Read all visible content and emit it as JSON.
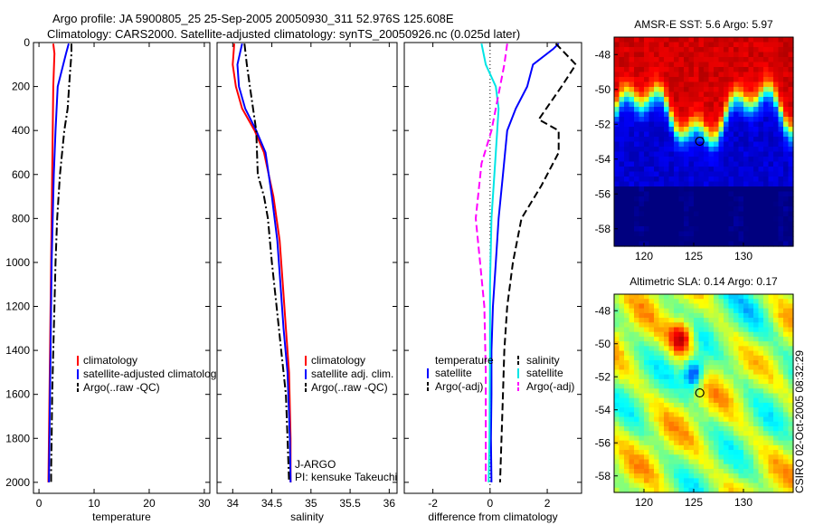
{
  "header": {
    "line1": "Argo profile: JA 5900805_25 25-Sep-2005 20050930_311 52.976S 125.608E",
    "line2": "Climatology: CARS2000. Satellite-adjusted climatology: synTS_20050926.nc (0.025d later)"
  },
  "footer_stamp": "CSIRO 02-Oct-2005 08:32:29",
  "colors": {
    "climatology": "#ff0000",
    "satellite": "#0000ff",
    "argo": "#000000",
    "sal_satellite": "#00e5e5",
    "sal_argo": "#ff00ff"
  },
  "chart_data": [
    {
      "type": "line",
      "xlabel": "temperature",
      "xlim": [
        -1,
        31
      ],
      "ylim": [
        0,
        2050
      ],
      "xticks": [
        0,
        10,
        20,
        30
      ],
      "yticks": [
        0,
        200,
        400,
        600,
        800,
        1000,
        1200,
        1400,
        1600,
        1800,
        2000
      ],
      "y_reversed": true,
      "legend": {
        "position": "lower-right",
        "entries": [
          "climatology",
          "satellite-adjusted climatology",
          "Argo(..raw -QC)"
        ]
      },
      "series": [
        {
          "name": "climatology",
          "color": "#ff0000",
          "style": "solid",
          "x": [
            2.6,
            2.8,
            2.6,
            2.5,
            2.4,
            2.3,
            2.2,
            2.1,
            2.0,
            1.9,
            1.8,
            1.7
          ],
          "y": [
            5,
            50,
            200,
            400,
            600,
            800,
            1000,
            1200,
            1400,
            1600,
            1800,
            2000
          ]
        },
        {
          "name": "satellite-adjusted climatology",
          "color": "#0000ff",
          "style": "solid",
          "x": [
            5.4,
            4.9,
            3.4,
            3.0,
            2.7,
            2.5,
            2.3,
            2.2,
            2.1,
            2.0,
            1.9,
            1.8
          ],
          "y": [
            5,
            50,
            200,
            400,
            600,
            800,
            1000,
            1200,
            1400,
            1600,
            1800,
            2000
          ]
        },
        {
          "name": "Argo(..raw -QC)",
          "color": "#000000",
          "style": "dashdot",
          "x": [
            5.9,
            5.9,
            5.6,
            5.2,
            4.6,
            3.8,
            3.3,
            3.0,
            2.8,
            2.6,
            2.4,
            2.3,
            2.2,
            2.2
          ],
          "y": [
            5,
            50,
            150,
            300,
            400,
            600,
            800,
            1000,
            1200,
            1400,
            1600,
            1800,
            1950,
            2000
          ]
        }
      ]
    },
    {
      "type": "line",
      "xlabel": "salinity",
      "xlim": [
        33.8,
        36.1
      ],
      "ylim": [
        0,
        2050
      ],
      "xticks": [
        34,
        34.5,
        35,
        35.5,
        36
      ],
      "y_reversed": true,
      "legend": {
        "position": "lower-right",
        "entries": [
          "climatology",
          "satellite adj. clim.",
          "Argo(..raw -QC)"
        ]
      },
      "annotations": [
        "J-ARGO",
        "PI: kensuke Takeuchi"
      ],
      "series": [
        {
          "name": "climatology",
          "color": "#ff0000",
          "style": "solid",
          "x": [
            34.02,
            34.0,
            34.04,
            34.12,
            34.28,
            34.4,
            34.52,
            34.6,
            34.64,
            34.68,
            34.72,
            34.74,
            34.74
          ],
          "y": [
            5,
            100,
            200,
            300,
            400,
            500,
            700,
            900,
            1100,
            1300,
            1500,
            1800,
            2000
          ]
        },
        {
          "name": "satellite adj. clim.",
          "color": "#0000ff",
          "style": "solid",
          "x": [
            34.12,
            34.06,
            34.08,
            34.16,
            34.3,
            34.42,
            34.5,
            34.57,
            34.61,
            34.65,
            34.7,
            34.73,
            34.74
          ],
          "y": [
            5,
            100,
            200,
            300,
            400,
            500,
            700,
            900,
            1100,
            1300,
            1500,
            1800,
            2000
          ]
        },
        {
          "name": "Argo(..raw -QC)",
          "color": "#000000",
          "style": "dashdot",
          "x": [
            34.15,
            34.18,
            34.22,
            34.3,
            34.32,
            34.4,
            34.45,
            34.5,
            34.56,
            34.62,
            34.68,
            34.7,
            34.72
          ],
          "y": [
            5,
            100,
            200,
            400,
            600,
            700,
            800,
            1000,
            1200,
            1400,
            1600,
            1800,
            2000
          ]
        }
      ]
    },
    {
      "type": "line",
      "xlabel": "difference from climatology",
      "xlim": [
        -3,
        3.2
      ],
      "ylim": [
        0,
        2050
      ],
      "xticks": [
        -2,
        0,
        2
      ],
      "y_reversed": true,
      "legend": {
        "position": "lower-center",
        "temperature_entries": [
          "satellite",
          "Argo(-adj)"
        ],
        "temperature_title": "temperature",
        "salinity_entries": [
          "satellite",
          "Argo(-adj)"
        ],
        "salinity_title": "salinity"
      },
      "series": [
        {
          "name": "temperature satellite",
          "color": "#0000ff",
          "style": "solid",
          "x": [
            2.4,
            2.2,
            1.5,
            1.3,
            0.9,
            0.6,
            0.45,
            0.3,
            0.2,
            0.1,
            0.05,
            0.05,
            0.03,
            0.05
          ],
          "y": [
            5,
            30,
            100,
            200,
            300,
            400,
            600,
            800,
            1000,
            1200,
            1400,
            1600,
            1800,
            2000
          ]
        },
        {
          "name": "temperature Argo(-adj)",
          "color": "#000000",
          "style": "dashed",
          "x": [
            2.3,
            3.0,
            2.5,
            1.7,
            2.4,
            2.4,
            1.8,
            1.1,
            0.8,
            0.6,
            0.5,
            0.45,
            0.4,
            0.35
          ],
          "y": [
            5,
            100,
            200,
            350,
            400,
            500,
            650,
            800,
            1000,
            1200,
            1400,
            1600,
            1800,
            2000
          ]
        },
        {
          "name": "salinity satellite",
          "color": "#00e5e5",
          "style": "solid",
          "x": [
            -0.3,
            -0.15,
            0.2,
            0.3,
            0.2,
            0.05,
            0.0,
            0.0,
            -0.02,
            -0.05
          ],
          "y": [
            5,
            100,
            200,
            300,
            500,
            800,
            1100,
            1400,
            1800,
            2000
          ]
        },
        {
          "name": "salinity Argo(-adj)",
          "color": "#ff00ff",
          "style": "dashed",
          "x": [
            0.6,
            0.5,
            0.35,
            0.05,
            -0.3,
            -0.5,
            -0.35,
            -0.2,
            -0.15,
            -0.15
          ],
          "y": [
            5,
            100,
            200,
            400,
            550,
            800,
            1000,
            1200,
            1500,
            2000
          ]
        }
      ]
    },
    {
      "type": "heatmap",
      "title": "AMSR-E SST: 5.6 Argo: 5.97",
      "xlim": [
        117,
        135
      ],
      "ylim": [
        -59,
        -47
      ],
      "xticks": [
        120,
        125,
        130
      ],
      "yticks": [
        -48,
        -50,
        -52,
        -54,
        -56,
        -58
      ],
      "marker": {
        "lon": 125.608,
        "lat": -52.976
      }
    },
    {
      "type": "heatmap",
      "title": "Altimetric SLA: 0.14 Argo: 0.17",
      "xlim": [
        117,
        135
      ],
      "ylim": [
        -59,
        -47
      ],
      "xticks": [
        120,
        125,
        130
      ],
      "yticks": [
        -48,
        -50,
        -52,
        -54,
        -56,
        -58
      ],
      "marker": {
        "lon": 125.608,
        "lat": -52.976
      }
    }
  ]
}
